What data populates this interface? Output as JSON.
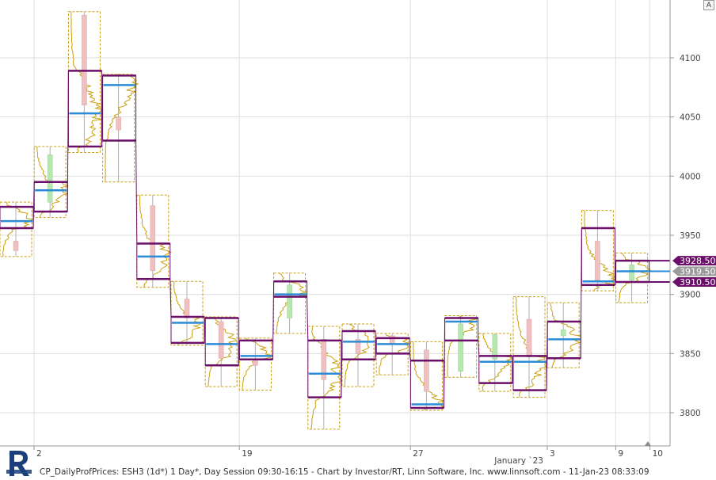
{
  "footer_text": "CP_DailyProfPrices: ESH3 (1d*) 1 Day*, Day Session 09:30-16:15 - Chart by Investor/RT, Linn Software, Inc. www.linnsoft.com - 11-Jan-23 08:33:09",
  "autoscale_button": "A",
  "colors": {
    "value_area": "#6b0f6b",
    "poc": "#2b8bd6",
    "profile": "#c9a010",
    "up_candle": "#b8e6b0",
    "down_candle": "#f0c0c0",
    "grid": "#dedede",
    "label_bg": "#6b0f6b",
    "label_mid_bg": "#9a9a9a"
  },
  "chart_data": {
    "type": "table",
    "chart_kind": "daily market profile with candles",
    "y_axis": {
      "ticks": [
        3800,
        3850,
        3900,
        3950,
        4000,
        4050,
        4100
      ],
      "range": [
        3780,
        4142
      ]
    },
    "x_axis": {
      "tick_labels": [
        "2",
        "19",
        "27",
        "3",
        "9",
        "10"
      ],
      "tick_after_session": [
        0,
        6,
        11,
        15,
        17,
        18
      ],
      "month_label": "January `23"
    },
    "sessions": [
      {
        "high": 3978,
        "low": 3932,
        "vah": 3974,
        "val": 3956,
        "poc": 3962,
        "open": 3945,
        "close": 3937
      },
      {
        "high": 4025,
        "low": 3965,
        "vah": 3995,
        "val": 3970,
        "poc": 3988,
        "open": 3978,
        "close": 4018
      },
      {
        "high": 4139,
        "low": 4020,
        "vah": 4089,
        "val": 4025,
        "poc": 4053,
        "open": 4136,
        "close": 4060
      },
      {
        "high": 4086,
        "low": 3995,
        "vah": 4085,
        "val": 4030,
        "poc": 4077,
        "open": 4050,
        "close": 4039
      },
      {
        "high": 3984,
        "low": 3906,
        "vah": 3943,
        "val": 3913,
        "poc": 3932,
        "open": 3975,
        "close": 3920
      },
      {
        "high": 3911,
        "low": 3857,
        "vah": 3881,
        "val": 3859,
        "poc": 3876,
        "open": 3896,
        "close": 3880
      },
      {
        "high": 3881,
        "low": 3822,
        "vah": 3880,
        "val": 3840,
        "poc": 3858,
        "open": 3877,
        "close": 3846
      },
      {
        "high": 3863,
        "low": 3819,
        "vah": 3861,
        "val": 3845,
        "poc": 3848,
        "open": 3845,
        "close": 3840
      },
      {
        "high": 3918,
        "low": 3867,
        "vah": 3911,
        "val": 3898,
        "poc": 3900,
        "open": 3880,
        "close": 3908
      },
      {
        "high": 3873,
        "low": 3786,
        "vah": 3861,
        "val": 3813,
        "poc": 3833,
        "open": 3862,
        "close": 3828
      },
      {
        "high": 3875,
        "low": 3822,
        "vah": 3869,
        "val": 3845,
        "poc": 3860,
        "open": 3862,
        "close": 3850
      },
      {
        "high": 3867,
        "low": 3832,
        "vah": 3863,
        "val": 3850,
        "poc": 3858,
        "open": 3865,
        "close": 3858
      },
      {
        "high": 3860,
        "low": 3802,
        "vah": 3844,
        "val": 3804,
        "poc": 3807,
        "open": 3853,
        "close": 3818
      },
      {
        "high": 3882,
        "low": 3830,
        "vah": 3880,
        "val": 3861,
        "poc": 3877,
        "open": 3835,
        "close": 3875
      },
      {
        "high": 3867,
        "low": 3818,
        "vah": 3848,
        "val": 3825,
        "poc": 3843,
        "open": 3845,
        "close": 3866
      },
      {
        "high": 3898,
        "low": 3813,
        "vah": 3848,
        "val": 3819,
        "poc": 3843,
        "open": 3879,
        "close": 3847
      },
      {
        "high": 3893,
        "low": 3838,
        "vah": 3877,
        "val": 3846,
        "poc": 3862,
        "open": 3865,
        "close": 3870
      },
      {
        "high": 3971,
        "low": 3903,
        "vah": 3956,
        "val": 3908,
        "poc": 3911,
        "open": 3945,
        "close": 3912
      },
      {
        "high": 3935,
        "low": 3893,
        "vah": 3928.5,
        "val": 3910.5,
        "poc": 3919.5,
        "open": 3912,
        "close": 3925
      }
    ],
    "price_labels": [
      {
        "value": 3928.5,
        "text": "3928.50",
        "kind": "vah"
      },
      {
        "value": 3919.5,
        "text": "3919.50",
        "kind": "poc"
      },
      {
        "value": 3910.5,
        "text": "3910.50",
        "kind": "val"
      }
    ]
  }
}
